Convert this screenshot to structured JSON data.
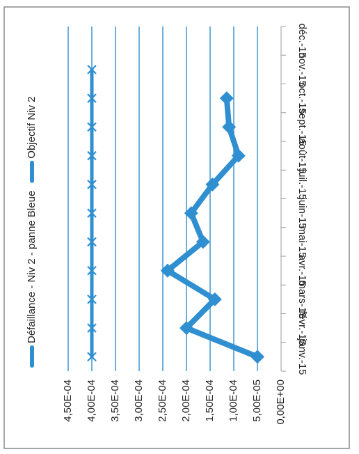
{
  "chart_data": {
    "type": "line",
    "orientation": "rotated-90",
    "categories": [
      "janv.-15",
      "févr.-15",
      "mars-15",
      "avr.-15",
      "mai-15",
      "juin-15",
      "juil.-15",
      "août-15",
      "sept.-15",
      "oct.-15",
      "nov.-15",
      "déc.-15"
    ],
    "series": [
      {
        "name": "Défaillance - Niv 2 - panne Bleue",
        "values": [
          5e-05,
          0.0002,
          0.00014,
          0.00024,
          0.000165,
          0.00019,
          0.000145,
          9e-05,
          0.00011,
          0.000115,
          null,
          null
        ],
        "marker": "diamond",
        "color": "#2f8fd0"
      },
      {
        "name": "Objectif Niv 2",
        "values": [
          0.0004,
          0.0004,
          0.0004,
          0.0004,
          0.0004,
          0.0004,
          0.0004,
          0.0004,
          0.0004,
          0.0004,
          0.0004,
          null
        ],
        "marker": "x",
        "color": "#2f8fd0"
      }
    ],
    "y_ticks": [
      "0,00E+00",
      "5,00E-05",
      "1,00E-04",
      "1,50E-04",
      "2,00E-04",
      "2,50E-04",
      "3,00E-04",
      "3,50E-04",
      "4,00E-04",
      "4,50E-04"
    ],
    "ylim": [
      0,
      0.00045
    ],
    "grid": true,
    "legend_position": "left"
  }
}
